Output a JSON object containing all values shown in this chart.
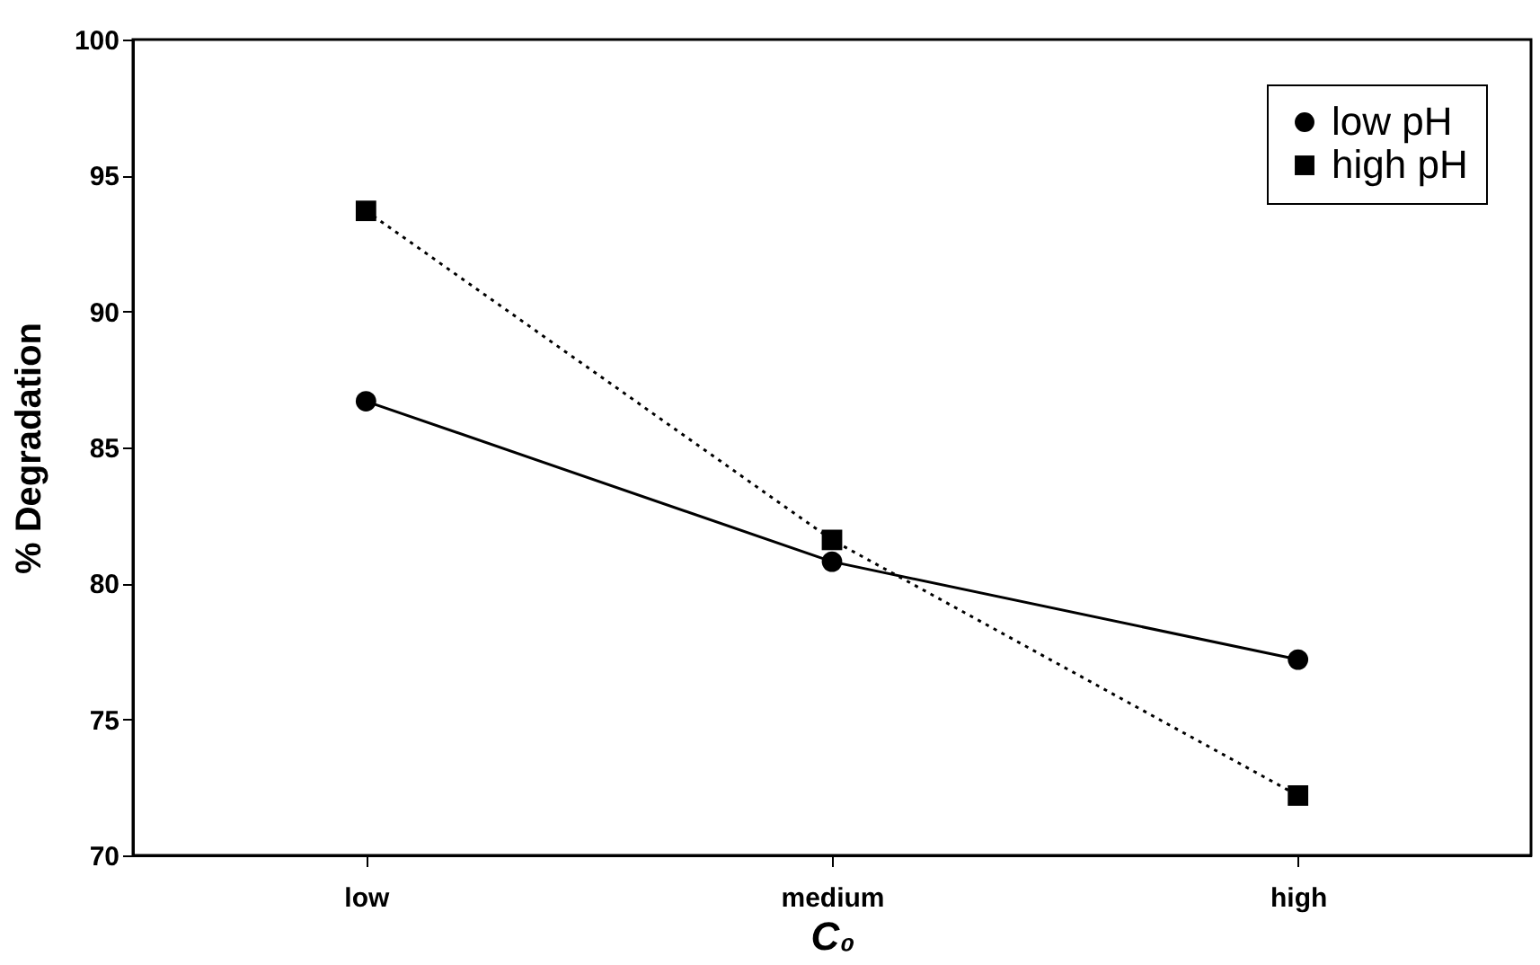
{
  "chart_data": {
    "type": "line",
    "xlabel": "C₀",
    "ylabel": "% Degradation",
    "categories": [
      "low",
      "medium",
      "high"
    ],
    "series": [
      {
        "name": "low pH",
        "color": "#000000",
        "marker": "circle",
        "line_style": "solid",
        "values": [
          86.7,
          80.8,
          77.2
        ]
      },
      {
        "name": "high pH",
        "color": "#000000",
        "marker": "square",
        "line_style": "dotted",
        "values": [
          93.7,
          81.6,
          72.2
        ]
      }
    ],
    "ylim": [
      70,
      100
    ],
    "yticks": [
      70,
      75,
      80,
      85,
      90,
      95,
      100
    ],
    "grid": false,
    "legend": "top right"
  }
}
